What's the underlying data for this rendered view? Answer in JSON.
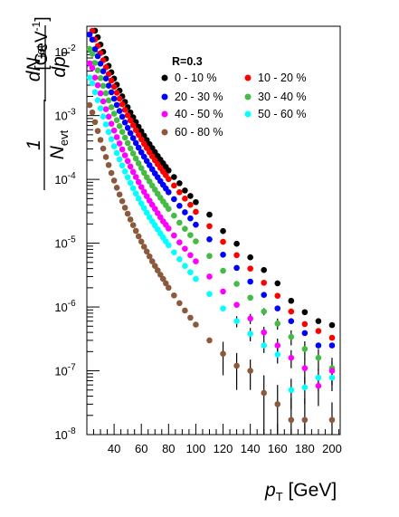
{
  "chart_data": {
    "type": "scatter",
    "xlabel": {
      "main": "p",
      "sub": "T",
      "unit": " [GeV]"
    },
    "ylabel": {
      "one": "1",
      "n": "N",
      "n_sub": "evt",
      "dn": "dN",
      "dn_sub": "jet",
      "dp": "dp",
      "dp_sub": "T",
      "unit": "[GeV",
      "unit_sup": "-1",
      "unit_close": "]"
    },
    "xlim": [
      20,
      206
    ],
    "ylim_log10": [
      -8,
      -1.6
    ],
    "y_scale": "log",
    "x_ticks": [
      40,
      60,
      80,
      100,
      120,
      140,
      160,
      180,
      200
    ],
    "x_tick_labels": [
      "40",
      "60",
      "80",
      "100",
      "120",
      "140",
      "160",
      "180",
      "200"
    ],
    "y_ticks": [
      {
        "value": 1e-08,
        "base": "10",
        "exp": "-8"
      },
      {
        "value": 1e-07,
        "base": "10",
        "exp": "-7"
      },
      {
        "value": 1e-06,
        "base": "10",
        "exp": "-6"
      },
      {
        "value": 1e-05,
        "base": "10",
        "exp": "-5"
      },
      {
        "value": 0.0001,
        "base": "10",
        "exp": "-4"
      },
      {
        "value": 0.001,
        "base": "10",
        "exp": "-3"
      },
      {
        "value": 0.01,
        "base": "10",
        "exp": "-2"
      }
    ],
    "legend": {
      "title": "R=0.3",
      "placement": "top-right"
    },
    "x": [
      22,
      24,
      26,
      28,
      30,
      32,
      34,
      36,
      38,
      40,
      42,
      44,
      46,
      48,
      50,
      52,
      54,
      56,
      58,
      60,
      62,
      64,
      66,
      68,
      70,
      72,
      74,
      76,
      78,
      80,
      84,
      88,
      92,
      96,
      100,
      110,
      120,
      130,
      140,
      150,
      160,
      170,
      180,
      190,
      200
    ],
    "series": [
      {
        "name": "0 - 10 %",
        "color": "#000000",
        "values": [
          0.0356,
          0.0299,
          0.0214,
          0.0169,
          0.013,
          0.00999,
          0.00776,
          0.00603,
          0.00478,
          0.0038,
          0.00305,
          0.00246,
          0.002,
          0.00164,
          0.00135,
          0.00112,
          0.000939,
          0.000791,
          0.000668,
          0.000567,
          0.000484,
          0.000414,
          0.000357,
          0.000309,
          0.000268,
          0.000233,
          0.000204,
          0.000179,
          0.000157,
          0.000138,
          0.000109,
          8.7e-05,
          6.7e-05,
          5.5e-05,
          4.4e-05,
          2.8e-05,
          1.55e-05,
          9.8e-06,
          6e-06,
          3.8e-06,
          2.35e-06,
          1.25e-06,
          8.3e-07,
          6e-07,
          5.2e-07
        ],
        "errors": [
          0,
          0,
          0,
          0,
          0,
          0,
          0,
          0,
          0,
          0,
          0,
          0,
          0,
          0,
          0,
          0,
          0,
          0,
          0,
          0,
          0,
          0,
          0,
          0,
          0,
          0,
          0,
          0,
          0,
          0,
          0,
          0,
          0,
          0,
          0,
          0,
          0,
          0,
          0,
          0,
          0,
          0,
          0,
          0,
          0
        ]
      },
      {
        "name": "10 - 20 %",
        "color": "#ff0000",
        "values": [
          0.0245,
          0.0213,
          0.0156,
          0.0123,
          0.00952,
          0.00736,
          0.00572,
          0.00447,
          0.00354,
          0.00283,
          0.00228,
          0.00184,
          0.0015,
          0.00123,
          0.00101,
          0.000843,
          0.000706,
          0.000593,
          0.0005,
          0.000425,
          0.000362,
          0.000309,
          0.000266,
          0.00023,
          0.000199,
          0.000173,
          0.000151,
          0.000132,
          0.000116,
          0.000101,
          8e-05,
          6.3e-05,
          5e-05,
          4e-05,
          3.1e-05,
          1.85e-05,
          1.05e-05,
          6.5e-06,
          4e-06,
          2.4e-06,
          1.5e-06,
          8.5e-07,
          5.4e-07,
          4.2e-07,
          3.3e-07
        ],
        "errors": [
          0,
          0,
          0,
          0,
          0,
          0,
          0,
          0,
          0,
          0,
          0,
          0,
          0,
          0,
          0,
          0,
          0,
          0,
          0,
          0,
          0,
          0,
          0,
          0,
          0,
          0,
          0,
          0,
          0,
          0,
          0,
          0,
          0,
          0,
          0,
          0,
          0,
          0,
          0,
          0,
          0,
          0,
          0,
          0,
          0
        ]
      },
      {
        "name": "20 - 30 %",
        "color": "#0000ff",
        "values": [
          0.0186,
          0.0155,
          0.011,
          0.00855,
          0.00651,
          0.00496,
          0.00381,
          0.00295,
          0.00232,
          0.00184,
          0.00147,
          0.00118,
          0.000958,
          0.00078,
          0.000641,
          0.000531,
          0.000443,
          0.000372,
          0.000314,
          0.000266,
          0.000227,
          0.000194,
          0.000167,
          0.000144,
          0.000124,
          0.000108,
          9.4e-05,
          8.2e-05,
          7.2e-05,
          6.3e-05,
          4.9e-05,
          3.85e-05,
          3.05e-05,
          2.45e-05,
          1.95e-05,
          1.15e-05,
          6.6e-06,
          4.1e-06,
          2.5e-06,
          1.55e-06,
          9.5e-07,
          6e-07,
          3.9e-07,
          2.5e-07,
          2.5e-07
        ],
        "errors": [
          0,
          0,
          0,
          0,
          0,
          0,
          0,
          0,
          0,
          0,
          0,
          0,
          0,
          0,
          0,
          0,
          0,
          0,
          0,
          0,
          0,
          0,
          0,
          0,
          0,
          0,
          0,
          0,
          0,
          0,
          0,
          0,
          0,
          0,
          0,
          0,
          0,
          0,
          0,
          0,
          0,
          0,
          0,
          0,
          0
        ]
      },
      {
        "name": "30 - 40 %",
        "color": "#44bb44",
        "values": [
          0.0111,
          0.00925,
          0.00669,
          0.00512,
          0.00387,
          0.00293,
          0.00224,
          0.00173,
          0.00135,
          0.00107,
          0.000849,
          0.000684,
          0.000555,
          0.000452,
          0.000371,
          0.000306,
          0.000254,
          0.000212,
          0.000178,
          0.00015,
          0.000127,
          0.000108,
          9.3e-05,
          8e-05,
          6.9e-05,
          5.95e-05,
          5.15e-05,
          4.5e-05,
          3.95e-05,
          3.45e-05,
          2.7e-05,
          2.1e-05,
          1.68e-05,
          1.34e-05,
          1.07e-05,
          6.3e-06,
          3.7e-06,
          2.3e-06,
          1.4e-06,
          8.5e-07,
          5.5e-07,
          3.4e-07,
          2.2e-07,
          1.6e-07,
          1.1e-07
        ],
        "errors": [
          0,
          0,
          0,
          0,
          0,
          0,
          0,
          0,
          0,
          0,
          0,
          0,
          0,
          0,
          0,
          0,
          0,
          0,
          0,
          0,
          0,
          0,
          0,
          0,
          0,
          0,
          0,
          0,
          0,
          0,
          0,
          0,
          0,
          0,
          0,
          0,
          0,
          0,
          0,
          1.1e-07,
          1.1e-07,
          9e-08,
          7e-08,
          6e-08,
          5e-08
        ]
      },
      {
        "name": "40 - 50 %",
        "color": "#ff00ff",
        "values": [
          0.00657,
          0.00558,
          0.00394,
          0.00299,
          0.00223,
          0.00167,
          0.00126,
          0.000964,
          0.000744,
          0.000584,
          0.000459,
          0.000366,
          0.000295,
          0.000238,
          0.000194,
          0.000159,
          0.000131,
          0.000109,
          9.1e-05,
          7.6e-05,
          6.4e-05,
          5.45e-05,
          4.65e-05,
          4e-05,
          3.45e-05,
          2.95e-05,
          2.55e-05,
          2.2e-05,
          1.95e-05,
          1.7e-05,
          1.32e-05,
          1.03e-05,
          8.2e-06,
          6.5e-06,
          5.2e-06,
          3e-06,
          1.75e-06,
          1.08e-06,
          6.6e-07,
          4e-07,
          2.5e-07,
          1.6e-07,
          1.1e-07,
          5.8e-08,
          1e-07
        ],
        "errors": [
          0,
          0,
          0,
          0,
          0,
          0,
          0,
          0,
          0,
          0,
          0,
          0,
          0,
          0,
          0,
          0,
          0,
          0,
          0,
          0,
          0,
          0,
          0,
          0,
          0,
          0,
          0,
          0,
          0,
          0,
          0,
          0,
          0,
          0,
          0,
          0,
          0,
          0,
          1.2e-07,
          9e-08,
          7e-08,
          5e-08,
          4.5e-08,
          3e-08,
          4e-08
        ]
      },
      {
        "name": "50 - 60 %",
        "color": "#00ffff",
        "values": [
          0.00394,
          0.00321,
          0.00233,
          0.00175,
          0.0013,
          0.000968,
          0.000728,
          0.000553,
          0.000425,
          0.00033,
          0.000259,
          0.000206,
          0.000165,
          0.000133,
          0.000108,
          8.8e-05,
          7.25e-05,
          6e-05,
          5e-05,
          4.2e-05,
          3.55e-05,
          3e-05,
          2.55e-05,
          2.2e-05,
          1.9e-05,
          1.64e-05,
          1.42e-05,
          1.23e-05,
          1.07e-05,
          9.3e-06,
          7.2e-06,
          5.6e-06,
          4.4e-06,
          3.5e-06,
          2.75e-06,
          1.6e-06,
          9.5e-07,
          6e-07,
          3.8e-07,
          2.5e-07,
          1.8e-07,
          5e-08,
          5.5e-08,
          7.8e-08,
          7.8e-08
        ],
        "errors": [
          0,
          0,
          0,
          0,
          0,
          0,
          0,
          0,
          0,
          0,
          0,
          0,
          0,
          0,
          0,
          0,
          0,
          0,
          0,
          0,
          0,
          0,
          0,
          0,
          0,
          0,
          0,
          0,
          0,
          0,
          0,
          0,
          0,
          0,
          0,
          0,
          0,
          1.2e-07,
          9e-08,
          6e-08,
          5e-08,
          2.5e-08,
          2.5e-08,
          3e-08,
          3e-08
        ]
      },
      {
        "name": "60 - 80 %",
        "color": "#8b5a3c",
        "values": [
          0.00146,
          0.00112,
          0.00079,
          0.000574,
          0.000416,
          0.000304,
          0.000224,
          0.000168,
          0.000126,
          9.6e-05,
          7.4e-05,
          5.8e-05,
          4.55e-05,
          3.6e-05,
          2.9e-05,
          2.35e-05,
          1.92e-05,
          1.56e-05,
          1.28e-05,
          1.06e-05,
          8.8e-06,
          7.4e-06,
          6.2e-06,
          5.2e-06,
          4.4e-06,
          3.75e-06,
          3.2e-06,
          2.75e-06,
          2.35e-06,
          2e-06,
          1.52e-06,
          1.15e-06,
          8.8e-07,
          6.8e-07,
          5.3e-07,
          3e-07,
          1.85e-07,
          1.2e-07,
          1e-07,
          4.5e-08,
          3e-08,
          1.7e-08,
          1.7e-08,
          1e-08,
          1.7e-08
        ],
        "errors": [
          0,
          0,
          0,
          0,
          0,
          0,
          0,
          0,
          0,
          0,
          0,
          0,
          0,
          0,
          0,
          0,
          0,
          0,
          0,
          0,
          0,
          0,
          0,
          0,
          0,
          0,
          0,
          0,
          0,
          0,
          0,
          0,
          0,
          0,
          0,
          0,
          1e-07,
          7e-08,
          5e-08,
          4e-08,
          3e-08,
          2e-08,
          2e-08,
          1.5e-08,
          1.5e-08
        ]
      }
    ]
  }
}
